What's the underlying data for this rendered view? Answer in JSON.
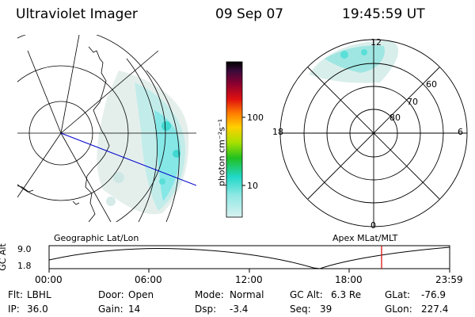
{
  "header": {
    "title": "Ultraviolet Imager",
    "date": "09 Sep 07",
    "time": "19:45:59 UT"
  },
  "colorbar": {
    "unit_label": "photon cm⁻²s⁻¹",
    "ticks": [
      "100",
      "10"
    ]
  },
  "geo_map": {
    "caption": "Geographic Lat/Lon"
  },
  "polar_map": {
    "caption": "Apex  MLat/MLT",
    "mlt_labels": {
      "top": "12",
      "left": "18",
      "right": "6",
      "bottom": "0"
    },
    "lat_labels": [
      "60",
      "70",
      "80"
    ]
  },
  "altitude_plot": {
    "axis_label": "GC Alt",
    "y_ticks": [
      "9.0",
      "1.8"
    ],
    "x_ticks": [
      "00:00",
      "06:00",
      "12:00",
      "18:00",
      "23:59"
    ],
    "current_time_marker_color": "#d40000"
  },
  "footer": {
    "row1": [
      {
        "key": "Flt:",
        "val": "LBHL"
      },
      {
        "key": "Door:",
        "val": "Open"
      },
      {
        "key": "Mode:",
        "val": "Normal"
      },
      {
        "key": "GC Alt:",
        "val": "6.3 Re"
      },
      {
        "key": "GLat:",
        "val": "-76.9"
      }
    ],
    "row2": [
      {
        "key": "IP:",
        "val": "36.0"
      },
      {
        "key": "Gain:",
        "val": "14"
      },
      {
        "key": "Dsp:",
        "val": "-3.4"
      },
      {
        "key": "Seq:",
        "val": "39"
      },
      {
        "key": "GLon:",
        "val": "227.4"
      }
    ]
  },
  "colors": {
    "aurora": "#7fe7e7",
    "noise": "#cfe7e1",
    "track": "#0000cc",
    "grid": "#000000"
  }
}
